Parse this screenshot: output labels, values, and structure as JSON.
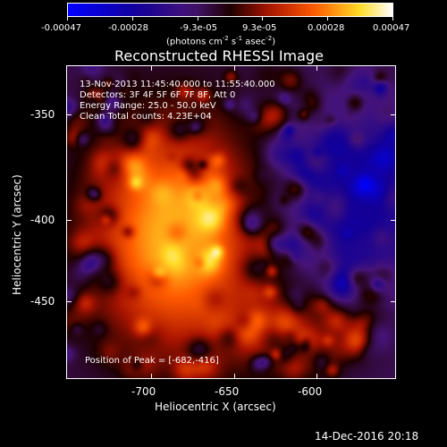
{
  "colorbar": {
    "tick_labels": [
      "-0.00047",
      "-0.00028",
      "-9.3e-05",
      "9.3e-05",
      "0.00028",
      "0.00047"
    ],
    "unit_label": "(photons cm",
    "unit_exp1": "-2",
    "unit_mid": " s",
    "unit_exp2": "-1",
    "unit_mid2": " asec",
    "unit_exp3": "-2",
    "unit_end": ")"
  },
  "plot": {
    "title": "Reconstructed RHESSI Image",
    "info_lines": [
      "13-Nov-2013 11:45:40.000 to 11:55:40.000",
      "Detectors: 3F 4F 5F 6F 7F 8F, Att 0",
      "Energy Range: 25.0 - 50.0 keV",
      "Clean     Total counts: 4.23E+04"
    ],
    "peak_label": "Position of Peak = [-682,-416]",
    "x_axis_title": "Heliocentric X (arcsec)",
    "y_axis_title": "Heliocentric Y (arcsec)",
    "x_tick_labels": [
      "-700",
      "-650",
      "-600"
    ],
    "y_tick_labels": [
      "-350",
      "-400",
      "-450"
    ],
    "colors": {
      "low": "#0000ff",
      "mid": "#5a1a80",
      "high": "#ff3300",
      "peak": "#ffff66"
    }
  },
  "footer": {
    "timestamp": "14-Dec-2016 20:18"
  }
}
